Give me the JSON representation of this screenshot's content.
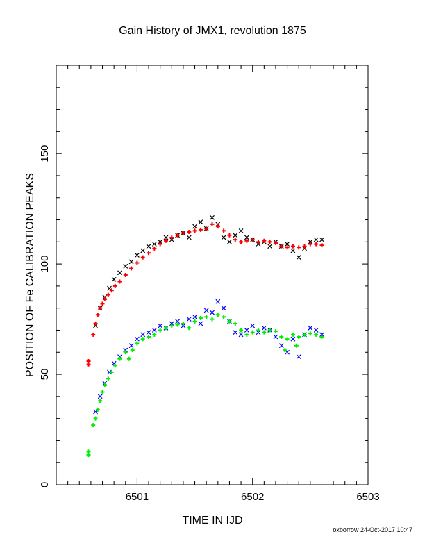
{
  "chart_data": {
    "type": "scatter",
    "title": "Gain History of JMX1, revolution 1875",
    "xlabel": "TIME IN IJD",
    "ylabel": "POSITION OF Fe CALIBRATION PEAKS",
    "xlim": [
      6500.3,
      6503
    ],
    "ylim": [
      0,
      190
    ],
    "xticks": [
      6501,
      6502,
      6503
    ],
    "yticks": [
      0,
      50,
      100,
      150
    ],
    "grid": false,
    "series": [
      {
        "marker": "x",
        "color": "#000000",
        "x": [
          6500.64,
          6500.68,
          6500.72,
          6500.76,
          6500.8,
          6500.85,
          6500.9,
          6500.95,
          6501.0,
          6501.05,
          6501.1,
          6501.15,
          6501.2,
          6501.25,
          6501.3,
          6501.35,
          6501.4,
          6501.45,
          6501.5,
          6501.55,
          6501.6,
          6501.65,
          6501.7,
          6501.75,
          6501.8,
          6501.85,
          6501.9,
          6501.95,
          6502.0,
          6502.05,
          6502.1,
          6502.15,
          6502.2,
          6502.25,
          6502.3,
          6502.35,
          6502.4,
          6502.45,
          6502.5,
          6502.55,
          6502.6
        ],
        "y": [
          72,
          80,
          85,
          89,
          93,
          96,
          99,
          101,
          104,
          106,
          108,
          109,
          110,
          112,
          111,
          113,
          114,
          112,
          117,
          119,
          116,
          121,
          118,
          112,
          110,
          113,
          115,
          112,
          111,
          109,
          110,
          108,
          110,
          108,
          109,
          106,
          103,
          107,
          110,
          111,
          111
        ]
      },
      {
        "marker": "+",
        "color": "#ff0000",
        "x": [
          6500.58,
          6500.58,
          6500.62,
          6500.64,
          6500.66,
          6500.68,
          6500.7,
          6500.72,
          6500.75,
          6500.78,
          6500.81,
          6500.85,
          6500.9,
          6500.95,
          6501.0,
          6501.05,
          6501.1,
          6501.15,
          6501.2,
          6501.25,
          6501.3,
          6501.35,
          6501.4,
          6501.45,
          6501.5,
          6501.55,
          6501.6,
          6501.65,
          6501.7,
          6501.75,
          6501.8,
          6501.85,
          6501.9,
          6501.95,
          6502.0,
          6502.05,
          6502.1,
          6502.15,
          6502.2,
          6502.25,
          6502.3,
          6502.35,
          6502.4,
          6502.45,
          6502.5,
          6502.55,
          6502.6
        ],
        "y": [
          54.5,
          56,
          68,
          73,
          77,
          80,
          82,
          84,
          86,
          88,
          90,
          92,
          95,
          98,
          100.5,
          103,
          105,
          107,
          109,
          110.5,
          112,
          113,
          114,
          114.5,
          115,
          115.5,
          116,
          118,
          117,
          115,
          113,
          111,
          110,
          110.5,
          111,
          110,
          110.5,
          110,
          109.5,
          108,
          107.5,
          108,
          107.5,
          108,
          109,
          109,
          108.5
        ]
      },
      {
        "marker": "x",
        "color": "#0000ff",
        "x": [
          6500.64,
          6500.68,
          6500.72,
          6500.76,
          6500.8,
          6500.85,
          6500.9,
          6500.95,
          6501.0,
          6501.05,
          6501.1,
          6501.15,
          6501.2,
          6501.25,
          6501.3,
          6501.35,
          6501.4,
          6501.45,
          6501.5,
          6501.55,
          6501.6,
          6501.65,
          6501.7,
          6501.75,
          6501.8,
          6501.85,
          6501.9,
          6501.95,
          6502.0,
          6502.05,
          6502.1,
          6502.15,
          6502.2,
          6502.25,
          6502.3,
          6502.35,
          6502.4,
          6502.45,
          6502.5,
          6502.55,
          6502.6
        ],
        "y": [
          33,
          40,
          46,
          51,
          55,
          58,
          61,
          63,
          66,
          68,
          69,
          70,
          72,
          71,
          73,
          74,
          72,
          75,
          76,
          73,
          79,
          78,
          83,
          80,
          74,
          69,
          68,
          70,
          72,
          69,
          71,
          70,
          67,
          63,
          60,
          66,
          58,
          68,
          71,
          70,
          68
        ]
      },
      {
        "marker": "+",
        "color": "#00ee00",
        "x": [
          6500.58,
          6500.58,
          6500.62,
          6500.64,
          6500.66,
          6500.68,
          6500.7,
          6500.72,
          6500.75,
          6500.78,
          6500.81,
          6500.85,
          6500.9,
          6500.93,
          6500.96,
          6501.0,
          6501.05,
          6501.1,
          6501.15,
          6501.2,
          6501.25,
          6501.3,
          6501.35,
          6501.4,
          6501.45,
          6501.5,
          6501.55,
          6501.6,
          6501.65,
          6501.7,
          6501.75,
          6501.8,
          6501.85,
          6501.9,
          6501.95,
          6502.0,
          6502.05,
          6502.1,
          6502.15,
          6502.2,
          6502.25,
          6502.28,
          6502.3,
          6502.35,
          6502.38,
          6502.4,
          6502.45,
          6502.5,
          6502.55,
          6502.6
        ],
        "y": [
          13.5,
          15,
          27,
          30,
          34,
          38,
          42,
          45,
          48,
          51,
          54,
          57,
          60,
          57,
          61,
          64,
          66,
          67,
          68,
          70,
          71,
          72,
          72.5,
          73,
          71,
          74,
          75.5,
          76,
          75,
          77,
          76,
          74,
          73,
          70,
          68,
          69,
          70,
          69,
          70,
          69.5,
          67,
          61,
          66,
          68,
          63,
          67,
          68,
          68.5,
          68,
          67
        ]
      }
    ]
  },
  "footer": "oxborrow 24-Oct-2017 10:47"
}
